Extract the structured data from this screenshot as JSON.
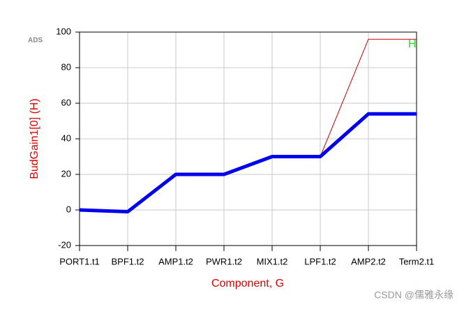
{
  "chart_data": {
    "type": "line",
    "badge": "ADS",
    "y_label": "BudGain1[0]  (H)",
    "x_label": "Component, G",
    "annotation": "H",
    "watermark": "CSDN @儒雅永缘",
    "categories": [
      "PORT1.t1",
      "BPF1.t2",
      "AMP1.t2",
      "PWR1.t2",
      "MIX1.t2",
      "LPF1.t2",
      "AMP2.t2",
      "Term2.t1"
    ],
    "series": [
      {
        "color": "#cc0000",
        "width": 1,
        "values": [
          0,
          -1,
          20,
          20,
          30,
          30,
          96,
          96
        ]
      },
      {
        "color": "#0000ee",
        "width": 5,
        "values": [
          0,
          -1,
          20,
          20,
          30,
          30,
          54,
          54
        ]
      }
    ],
    "ylim": [
      -20,
      100
    ],
    "yticks": [
      -20,
      0,
      20,
      40,
      60,
      80,
      100
    ],
    "grid": true
  }
}
